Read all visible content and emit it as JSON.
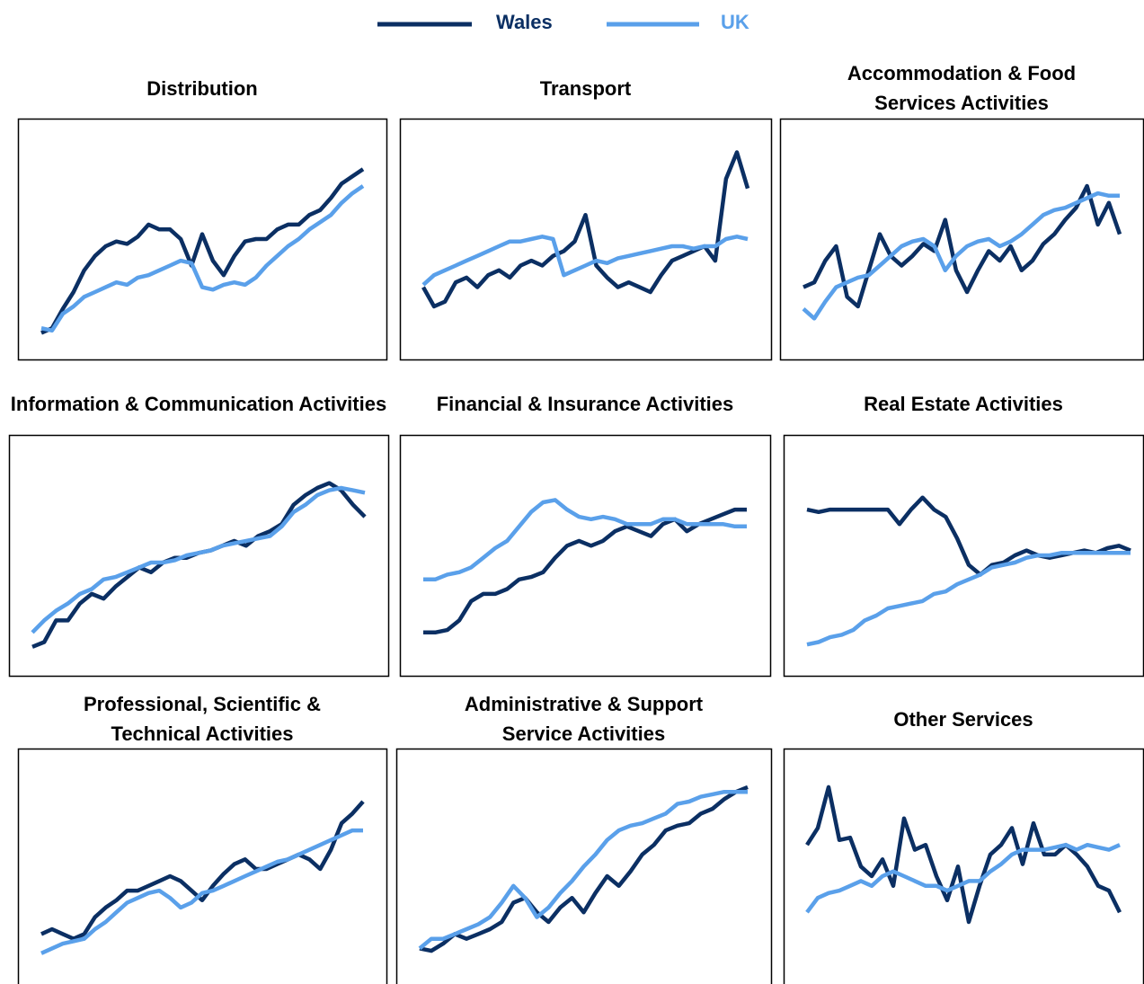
{
  "chart_data": [
    {
      "type": "line",
      "title": "Distribution",
      "ylim": [
        0,
        100
      ],
      "categories": [
        null,
        null,
        null,
        null,
        null,
        null,
        null,
        null,
        null,
        null,
        null,
        null,
        null,
        null,
        null,
        null,
        null,
        null,
        null,
        null,
        null,
        null,
        null,
        null,
        null,
        null,
        null,
        null,
        null,
        null,
        null
      ],
      "series": [
        {
          "name": "Wales",
          "color": "#0b2f63",
          "values": [
            11,
            13,
            21,
            28,
            37,
            43,
            47,
            49,
            48,
            51,
            56,
            54,
            54,
            50,
            39,
            52,
            41,
            35,
            43,
            49,
            50,
            50,
            54,
            56,
            56,
            60,
            62,
            67,
            73,
            76,
            79
          ]
        },
        {
          "name": "UK",
          "color": "#5aa0ea",
          "values": [
            13,
            12,
            19,
            22,
            26,
            28,
            30,
            32,
            31,
            34,
            35,
            37,
            39,
            41,
            40,
            30,
            29,
            31,
            32,
            31,
            34,
            39,
            43,
            47,
            50,
            54,
            57,
            60,
            65,
            69,
            72
          ]
        }
      ]
    },
    {
      "type": "line",
      "title": "Transport",
      "ylim": [
        0,
        100
      ],
      "categories": [
        null,
        null,
        null,
        null,
        null,
        null,
        null,
        null,
        null,
        null,
        null,
        null,
        null,
        null,
        null,
        null,
        null,
        null,
        null,
        null,
        null,
        null,
        null,
        null,
        null,
        null,
        null,
        null,
        null,
        null,
        null
      ],
      "series": [
        {
          "name": "Wales",
          "color": "#0b2f63",
          "values": [
            30,
            22,
            24,
            32,
            34,
            30,
            35,
            37,
            34,
            39,
            41,
            39,
            43,
            45,
            49,
            60,
            39,
            34,
            30,
            32,
            30,
            28,
            35,
            41,
            43,
            45,
            47,
            41,
            75,
            86,
            71
          ]
        },
        {
          "name": "UK",
          "color": "#5aa0ea",
          "values": [
            31,
            35,
            37,
            39,
            41,
            43,
            45,
            47,
            49,
            49,
            50,
            51,
            50,
            35,
            37,
            39,
            41,
            40,
            42,
            43,
            44,
            45,
            46,
            47,
            47,
            46,
            47,
            47,
            50,
            51,
            50
          ]
        }
      ]
    },
    {
      "type": "line",
      "title": "Accommodation & Food Services Activities",
      "ylim": [
        0,
        100
      ],
      "categories": [
        null,
        null,
        null,
        null,
        null,
        null,
        null,
        null,
        null,
        null,
        null,
        null,
        null,
        null,
        null,
        null,
        null,
        null,
        null,
        null,
        null,
        null,
        null,
        null,
        null,
        null,
        null,
        null,
        null,
        null
      ],
      "series": [
        {
          "name": "Wales",
          "color": "#0b2f63",
          "values": [
            30,
            32,
            41,
            47,
            26,
            22,
            37,
            52,
            43,
            39,
            43,
            48,
            45,
            58,
            37,
            28,
            37,
            45,
            41,
            47,
            37,
            41,
            48,
            52,
            58,
            63,
            72,
            56,
            65,
            52
          ]
        },
        {
          "name": "UK",
          "color": "#5aa0ea",
          "values": [
            21,
            17,
            24,
            30,
            32,
            34,
            35,
            39,
            43,
            47,
            49,
            50,
            47,
            37,
            43,
            47,
            49,
            50,
            47,
            49,
            52,
            56,
            60,
            62,
            63,
            65,
            67,
            69,
            68,
            68
          ]
        }
      ]
    },
    {
      "type": "line",
      "title": "Information & Communication Activities",
      "ylim": [
        0,
        100
      ],
      "categories": [
        null,
        null,
        null,
        null,
        null,
        null,
        null,
        null,
        null,
        null,
        null,
        null,
        null,
        null,
        null,
        null,
        null,
        null,
        null,
        null,
        null,
        null,
        null,
        null,
        null,
        null,
        null,
        null,
        null
      ],
      "series": [
        {
          "name": "Wales",
          "color": "#0b2f63",
          "values": [
            12,
            14,
            23,
            23,
            30,
            34,
            32,
            37,
            41,
            45,
            43,
            47,
            49,
            49,
            51,
            52,
            54,
            56,
            54,
            58,
            60,
            63,
            71,
            75,
            78,
            80,
            77,
            71,
            66
          ]
        },
        {
          "name": "UK",
          "color": "#5aa0ea",
          "values": [
            18,
            23,
            27,
            30,
            34,
            36,
            40,
            41,
            43,
            45,
            47,
            47,
            48,
            50,
            51,
            52,
            54,
            55,
            56,
            57,
            58,
            62,
            68,
            71,
            75,
            77,
            78,
            77,
            76
          ]
        }
      ]
    },
    {
      "type": "line",
      "title": "Financial & Insurance Activities",
      "ylim": [
        0,
        100
      ],
      "categories": [
        null,
        null,
        null,
        null,
        null,
        null,
        null,
        null,
        null,
        null,
        null,
        null,
        null,
        null,
        null,
        null,
        null,
        null,
        null,
        null,
        null,
        null,
        null,
        null,
        null,
        null,
        null,
        null
      ],
      "series": [
        {
          "name": "Wales",
          "color": "#0b2f63",
          "values": [
            18,
            18,
            19,
            23,
            31,
            34,
            34,
            36,
            40,
            41,
            43,
            49,
            54,
            56,
            54,
            56,
            60,
            62,
            60,
            58,
            63,
            65,
            60,
            63,
            65,
            67,
            69,
            69
          ]
        },
        {
          "name": "UK",
          "color": "#5aa0ea",
          "values": [
            40,
            40,
            42,
            43,
            45,
            49,
            53,
            56,
            62,
            68,
            72,
            73,
            69,
            66,
            65,
            66,
            65,
            63,
            63,
            63,
            65,
            65,
            63,
            63,
            63,
            63,
            62,
            62
          ]
        }
      ]
    },
    {
      "type": "line",
      "title": "Real Estate Activities",
      "ylim": [
        0,
        100
      ],
      "categories": [
        null,
        null,
        null,
        null,
        null,
        null,
        null,
        null,
        null,
        null,
        null,
        null,
        null,
        null,
        null,
        null,
        null,
        null,
        null,
        null,
        null,
        null,
        null,
        null,
        null,
        null,
        null,
        null,
        null
      ],
      "series": [
        {
          "name": "Wales",
          "color": "#0b2f63",
          "values": [
            69,
            68,
            69,
            69,
            69,
            69,
            69,
            69,
            63,
            69,
            74,
            69,
            66,
            57,
            46,
            42,
            46,
            47,
            50,
            52,
            50,
            49,
            50,
            51,
            52,
            51,
            53,
            54,
            52
          ]
        },
        {
          "name": "UK",
          "color": "#5aa0ea",
          "values": [
            13,
            14,
            16,
            17,
            19,
            23,
            25,
            28,
            29,
            30,
            31,
            34,
            35,
            38,
            40,
            42,
            45,
            46,
            47,
            49,
            50,
            50,
            51,
            51,
            51,
            51,
            51,
            51,
            51
          ]
        }
      ]
    },
    {
      "type": "line",
      "title": "Professional, Scientific & Technical Activities",
      "ylim": [
        0,
        100
      ],
      "categories": [
        null,
        null,
        null,
        null,
        null,
        null,
        null,
        null,
        null,
        null,
        null,
        null,
        null,
        null,
        null,
        null,
        null,
        null,
        null,
        null,
        null,
        null,
        null,
        null,
        null,
        null,
        null,
        null,
        null,
        null,
        null
      ],
      "series": [
        {
          "name": "Wales",
          "color": "#0b2f63",
          "values": [
            23,
            25,
            23,
            21,
            23,
            30,
            34,
            37,
            41,
            41,
            43,
            45,
            47,
            45,
            41,
            37,
            43,
            48,
            52,
            54,
            50,
            50,
            52,
            54,
            56,
            54,
            50,
            58,
            69,
            73,
            78
          ]
        },
        {
          "name": "UK",
          "color": "#5aa0ea",
          "values": [
            15,
            17,
            19,
            20,
            21,
            25,
            28,
            32,
            36,
            38,
            40,
            41,
            38,
            34,
            36,
            40,
            41,
            43,
            45,
            47,
            49,
            51,
            53,
            54,
            56,
            58,
            60,
            62,
            64,
            66,
            66
          ]
        }
      ]
    },
    {
      "type": "line",
      "title": "Administrative & Support Service Activities",
      "ylim": [
        0,
        100
      ],
      "categories": [
        null,
        null,
        null,
        null,
        null,
        null,
        null,
        null,
        null,
        null,
        null,
        null,
        null,
        null,
        null,
        null,
        null,
        null,
        null,
        null,
        null,
        null,
        null,
        null,
        null,
        null,
        null,
        null,
        null
      ],
      "series": [
        {
          "name": "Wales",
          "color": "#0b2f63",
          "values": [
            17,
            16,
            19,
            23,
            21,
            23,
            25,
            28,
            36,
            38,
            32,
            28,
            34,
            38,
            32,
            40,
            47,
            43,
            49,
            56,
            60,
            66,
            68,
            69,
            73,
            75,
            79,
            82,
            84
          ]
        },
        {
          "name": "UK",
          "color": "#5aa0ea",
          "values": [
            17,
            21,
            21,
            23,
            25,
            27,
            30,
            36,
            43,
            38,
            30,
            34,
            40,
            45,
            51,
            56,
            62,
            66,
            68,
            69,
            71,
            73,
            77,
            78,
            80,
            81,
            82,
            82,
            82
          ]
        }
      ]
    },
    {
      "type": "line",
      "title": "Other Services",
      "ylim": [
        0,
        100
      ],
      "categories": [
        null,
        null,
        null,
        null,
        null,
        null,
        null,
        null,
        null,
        null,
        null,
        null,
        null,
        null,
        null,
        null,
        null,
        null,
        null,
        null,
        null,
        null,
        null,
        null,
        null,
        null,
        null,
        null,
        null,
        null
      ],
      "series": [
        {
          "name": "Wales",
          "color": "#0b2f63",
          "values": [
            60,
            67,
            84,
            62,
            63,
            51,
            47,
            54,
            43,
            71,
            58,
            60,
            47,
            37,
            51,
            28,
            43,
            56,
            60,
            67,
            52,
            69,
            56,
            56,
            60,
            56,
            51,
            43,
            41,
            32
          ]
        },
        {
          "name": "UK",
          "color": "#5aa0ea",
          "values": [
            32,
            38,
            40,
            41,
            43,
            45,
            43,
            47,
            49,
            47,
            45,
            43,
            43,
            41,
            43,
            45,
            45,
            49,
            52,
            56,
            58,
            58,
            58,
            59,
            60,
            58,
            60,
            59,
            58,
            60
          ]
        }
      ]
    }
  ]
}
